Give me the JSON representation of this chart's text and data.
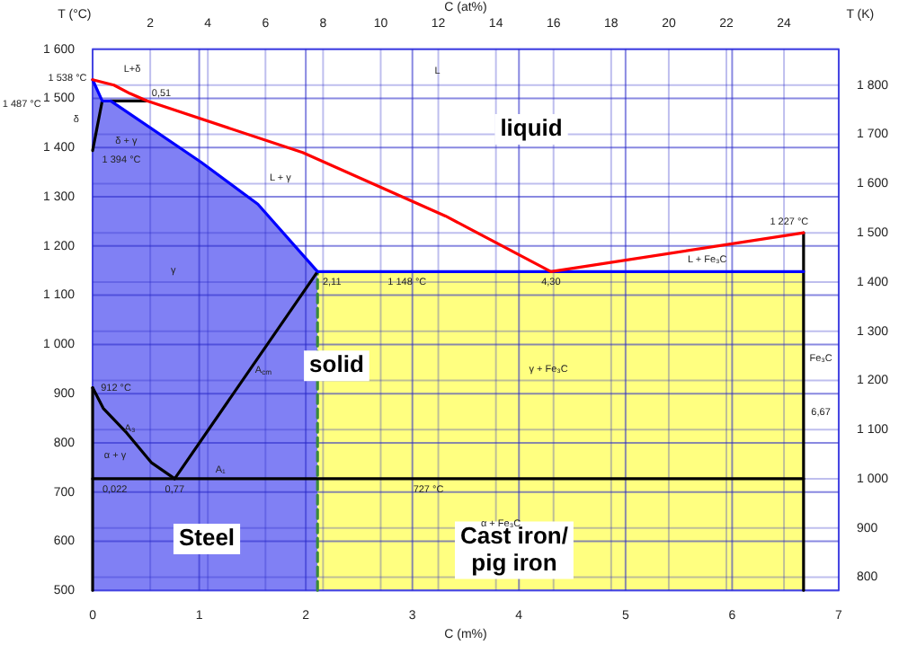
{
  "chart_data": {
    "type": "line",
    "xlabel": "C (m%)",
    "ylabel": "T (°C)",
    "x2label": "C (at%)",
    "y2label": "T (K)",
    "xlim": [
      0,
      7
    ],
    "xticks": [
      0,
      1,
      2,
      3,
      4,
      5,
      6,
      7
    ],
    "x2lim": [
      0,
      25.9
    ],
    "x2ticks": [
      2,
      4,
      6,
      8,
      10,
      12,
      14,
      16,
      18,
      20,
      22,
      24
    ],
    "ylim": [
      500,
      1600
    ],
    "yticks": [
      500,
      600,
      700,
      800,
      900,
      {
        "value": 1000,
        "label": "1 000"
      },
      {
        "value": 1100,
        "label": "1 100"
      },
      {
        "value": 1200,
        "label": "1 200"
      },
      {
        "value": 1300,
        "label": "1 300"
      },
      {
        "value": 1400,
        "label": "1 400"
      },
      {
        "value": 1500,
        "label": "1 500"
      },
      {
        "value": 1600,
        "label": "1 600"
      }
    ],
    "y2lim": [
      773.15,
      1873.15
    ],
    "y2ticks": [
      800,
      900,
      {
        "value": 1000,
        "label": "1 000"
      },
      {
        "value": 1100,
        "label": "1 100"
      },
      {
        "value": 1200,
        "label": "1 200"
      },
      {
        "value": 1300,
        "label": "1 300"
      },
      {
        "value": 1400,
        "label": "1 400"
      },
      {
        "value": 1500,
        "label": "1 500"
      },
      {
        "value": 1600,
        "label": "1 600"
      },
      {
        "value": 1700,
        "label": "1 700"
      },
      {
        "value": 1800,
        "label": "1 800"
      }
    ],
    "grid": true,
    "legend": false,
    "series": [
      {
        "type": "area",
        "color": "#8080f4",
        "x": [
          0,
          0.09,
          0.17,
          1.02,
          1.55,
          2.11
        ],
        "values": [
          1538,
          1495,
          1495,
          1370,
          1285,
          1148
        ]
      },
      {
        "type": "area",
        "color": "#ffff80",
        "x": [
          2.11,
          6.67
        ],
        "values": [
          1148,
          1148
        ]
      },
      {
        "type": "line",
        "color": "#ff0000",
        "x": [
          0,
          0.2,
          0.35,
          0.51,
          1.97,
          3.31,
          4.3,
          6.67
        ],
        "values": [
          1538,
          1527,
          1510,
          1495,
          1390,
          1261,
          1148,
          1227
        ]
      },
      {
        "type": "line",
        "color": "#0000ff",
        "x": [
          0,
          0.09,
          0.17,
          1.02,
          1.55,
          2.11,
          6.67
        ],
        "values": [
          1538,
          1495,
          1495,
          1370,
          1285,
          1148,
          1148
        ]
      },
      {
        "type": "line",
        "color": "#000000",
        "x": [
          0.17,
          0.51
        ],
        "values": [
          1495,
          1495
        ]
      },
      {
        "type": "line",
        "color": "#000000",
        "x": [
          0,
          0.09
        ],
        "values": [
          1394,
          1495
        ]
      },
      {
        "type": "line",
        "color": "#000000",
        "x": [
          0,
          0.1,
          0.32,
          0.55,
          0.77
        ],
        "values": [
          912,
          870,
          820,
          760,
          727
        ]
      },
      {
        "type": "line",
        "color": "#000000",
        "x": [
          0.77,
          2.11
        ],
        "values": [
          727,
          1148
        ]
      },
      {
        "type": "line",
        "color": "#000000",
        "x": [
          0,
          6.67
        ],
        "values": [
          727,
          727
        ]
      },
      {
        "type": "line",
        "color": "#000000",
        "x": [
          6.67,
          6.67
        ],
        "values": [
          500,
          1227
        ]
      },
      {
        "type": "line",
        "color": "#000000",
        "x": [
          0,
          0
        ],
        "values": [
          500,
          912
        ]
      },
      {
        "type": "line",
        "color": "#3a8a3a",
        "line_style": "dashed",
        "x": [
          2.11,
          2.11
        ],
        "values": [
          500,
          1148
        ]
      }
    ],
    "annotations": [
      "liquid",
      "solid",
      "Steel",
      "Cast iron/ pig iron",
      "L",
      "L+δ",
      "L + γ",
      "γ",
      "γ + Fe₃C",
      "L + Fe₃C",
      "α + γ",
      "α + Fe₃C",
      "δ + γ",
      "δ",
      "A₃",
      "Fe₃C",
      "6,67",
      {
        "text": "1 538 °C",
        "x": 0,
        "y": 1538
      },
      "1 487 °C",
      {
        "text": "0,51",
        "x": 0.51,
        "y": 1495
      },
      {
        "text": "1 394 °C",
        "x": 0,
        "y": 1394
      },
      {
        "text": "912 °C",
        "x": 0,
        "y": 912
      },
      {
        "text": "A$_{cm}$",
        "x": 1.45,
        "y": 941
      },
      {
        "text": "0,022",
        "x": 0.022,
        "y": 727
      },
      {
        "text": "0,77",
        "x": 0.77,
        "y": 727
      },
      {
        "text": "A₁",
        "x": 1.2,
        "y": 727
      },
      {
        "text": "727 °C",
        "x": 3.15,
        "y": 727
      },
      {
        "text": "2,11",
        "x": 2.11,
        "y": 1148
      },
      {
        "text": "1 148 °C",
        "x": 2.95,
        "y": 1148
      },
      {
        "text": "4,30",
        "x": 4.3,
        "y": 1148
      },
      {
        "text": "1 227 °C",
        "x": 6.67,
        "y": 1227
      }
    ]
  }
}
